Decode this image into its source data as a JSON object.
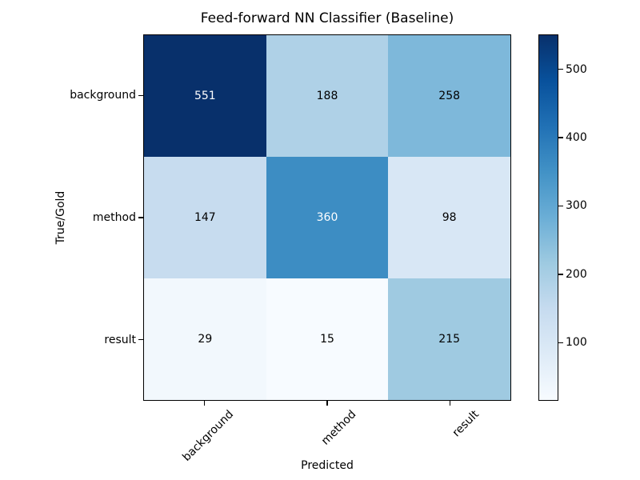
{
  "figure": {
    "title": "Feed-forward NN Classifier (Baseline)",
    "xlabel": "Predicted",
    "ylabel": "True/Gold"
  },
  "chart_data": {
    "type": "heatmap",
    "title": "Feed-forward NN Classifier (Baseline)",
    "xlabel": "Predicted",
    "ylabel": "True/Gold",
    "x_categories": [
      "background",
      "method",
      "result"
    ],
    "y_categories": [
      "background",
      "method",
      "result"
    ],
    "values": [
      [
        551,
        188,
        258
      ],
      [
        147,
        360,
        98
      ],
      [
        29,
        15,
        215
      ]
    ],
    "colormap": "Blues",
    "vmin": 15,
    "vmax": 551,
    "colorbar_ticks": [
      100,
      200,
      300,
      400,
      500
    ],
    "colormap_stops": [
      "#f7fbff",
      "#deebf7",
      "#c6dbef",
      "#9ecae1",
      "#6baed6",
      "#4292c6",
      "#2171b5",
      "#08519c",
      "#08306b"
    ],
    "cell_colors": [
      [
        "#08306b",
        "#afd1e7",
        "#7eb8da"
      ],
      [
        "#c7dcef",
        "#3d8dc3",
        "#d8e7f5"
      ],
      [
        "#f2f8fd",
        "#f7fbff",
        "#9fcae1"
      ]
    ],
    "cell_text_colors": [
      [
        "#ffffff",
        "#000000",
        "#000000"
      ],
      [
        "#000000",
        "#ffffff",
        "#000000"
      ],
      [
        "#000000",
        "#000000",
        "#000000"
      ]
    ],
    "spine_color": "#000000",
    "background_color": "#ffffff"
  }
}
